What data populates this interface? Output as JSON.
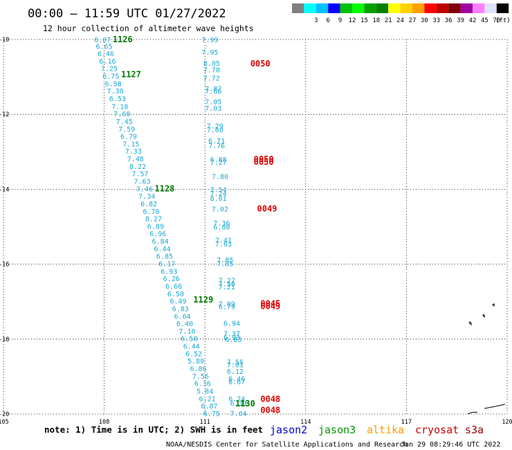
{
  "header": {
    "title": "00:00 — 11:59 UTC 01/27/2022",
    "subtitle": "12 hour collection of altimeter wave heights"
  },
  "legend": {
    "swatches": [
      {
        "color": "#808080",
        "label": ""
      },
      {
        "color": "#00ffff",
        "label": "3"
      },
      {
        "color": "#00c0ff",
        "label": "6"
      },
      {
        "color": "#0000ff",
        "label": "9"
      },
      {
        "color": "#00c000",
        "label": "12"
      },
      {
        "color": "#00ff00",
        "label": "15"
      },
      {
        "color": "#00a000",
        "label": "18"
      },
      {
        "color": "#008000",
        "label": "21"
      },
      {
        "color": "#ffff00",
        "label": "24"
      },
      {
        "color": "#ffd000",
        "label": "27"
      },
      {
        "color": "#ffa000",
        "label": "30"
      },
      {
        "color": "#ff0000",
        "label": "33"
      },
      {
        "color": "#c00000",
        "label": "36"
      },
      {
        "color": "#800000",
        "label": "39"
      },
      {
        "color": "#a000a0",
        "label": "42"
      },
      {
        "color": "#ff80ff",
        "label": "45"
      },
      {
        "color": "#e0e0ff",
        "label": "70"
      },
      {
        "color": "#000000",
        "label": ""
      }
    ],
    "unit": "(ft)"
  },
  "footer": {
    "note": "note:  1) Time is in UTC; 2) SWH is in feet",
    "satellites": [
      {
        "name": "jason2",
        "color": "#0000cc"
      },
      {
        "name": "jason3",
        "color": "#009900"
      },
      {
        "name": "altika",
        "color": "#ff9900"
      },
      {
        "name": "cryosat",
        "color": "#cc0000"
      },
      {
        "name": "s3a",
        "color": "#990000"
      }
    ],
    "credit": "NOAA/NESDIS Center for Satellite Applications and Research",
    "timestamp": "Jan 29 08:29:46 UTC 2022"
  },
  "chart_data": {
    "type": "scatter",
    "xlim": [
      105,
      120
    ],
    "ylim": [
      -20,
      -10
    ],
    "x_ticks": [
      "105",
      "108",
      "111",
      "114",
      "117",
      "120"
    ],
    "y_ticks": [
      "-10",
      "-12",
      "-14",
      "-16",
      "-18",
      "-20"
    ],
    "grid": true,
    "points": [
      {
        "x": 107.95,
        "y": -10.0,
        "v": "6.07"
      },
      {
        "x": 108.0,
        "y": -10.18,
        "v": "6.65"
      },
      {
        "x": 108.05,
        "y": -10.37,
        "v": "6.46"
      },
      {
        "x": 108.1,
        "y": -10.57,
        "v": "6.16"
      },
      {
        "x": 108.15,
        "y": -10.77,
        "v": "7.25"
      },
      {
        "x": 108.2,
        "y": -10.97,
        "v": "6.75"
      },
      {
        "x": 108.27,
        "y": -11.17,
        "v": "6.58"
      },
      {
        "x": 108.33,
        "y": -11.37,
        "v": "7.30"
      },
      {
        "x": 108.4,
        "y": -11.57,
        "v": "6.53"
      },
      {
        "x": 108.47,
        "y": -11.78,
        "v": "7.18"
      },
      {
        "x": 108.53,
        "y": -11.98,
        "v": "7.60"
      },
      {
        "x": 108.6,
        "y": -12.18,
        "v": "7.45"
      },
      {
        "x": 108.67,
        "y": -12.38,
        "v": "7.59"
      },
      {
        "x": 108.73,
        "y": -12.58,
        "v": "6.79"
      },
      {
        "x": 108.8,
        "y": -12.78,
        "v": "7.15"
      },
      {
        "x": 108.87,
        "y": -12.98,
        "v": "7.33"
      },
      {
        "x": 108.93,
        "y": -13.18,
        "v": "7.48"
      },
      {
        "x": 109.0,
        "y": -13.38,
        "v": "8.22"
      },
      {
        "x": 109.07,
        "y": -13.58,
        "v": "7.57"
      },
      {
        "x": 109.13,
        "y": -13.78,
        "v": "7.63"
      },
      {
        "x": 109.2,
        "y": -13.98,
        "v": "7.46"
      },
      {
        "x": 109.27,
        "y": -14.18,
        "v": "7.34"
      },
      {
        "x": 109.33,
        "y": -14.38,
        "v": "6.82"
      },
      {
        "x": 109.4,
        "y": -14.58,
        "v": "6.70"
      },
      {
        "x": 109.47,
        "y": -14.78,
        "v": "8.27"
      },
      {
        "x": 109.53,
        "y": -14.98,
        "v": "6.89"
      },
      {
        "x": 109.6,
        "y": -15.18,
        "v": "6.96"
      },
      {
        "x": 109.67,
        "y": -15.38,
        "v": "6.84"
      },
      {
        "x": 109.73,
        "y": -15.58,
        "v": "6.44"
      },
      {
        "x": 109.8,
        "y": -15.78,
        "v": "6.85"
      },
      {
        "x": 109.87,
        "y": -15.98,
        "v": "6.17"
      },
      {
        "x": 109.93,
        "y": -16.18,
        "v": "6.93"
      },
      {
        "x": 110.0,
        "y": -16.38,
        "v": "6.26"
      },
      {
        "x": 110.07,
        "y": -16.58,
        "v": "6.66"
      },
      {
        "x": 110.13,
        "y": -16.78,
        "v": "6.50"
      },
      {
        "x": 110.2,
        "y": -16.98,
        "v": "6.49"
      },
      {
        "x": 110.27,
        "y": -17.18,
        "v": "6.83"
      },
      {
        "x": 110.33,
        "y": -17.38,
        "v": "6.64"
      },
      {
        "x": 110.4,
        "y": -17.58,
        "v": "6.40"
      },
      {
        "x": 110.47,
        "y": -17.78,
        "v": "7.10"
      },
      {
        "x": 110.53,
        "y": -17.98,
        "v": "6.50"
      },
      {
        "x": 110.6,
        "y": -18.18,
        "v": "6.44"
      },
      {
        "x": 110.67,
        "y": -18.38,
        "v": "6.52"
      },
      {
        "x": 110.73,
        "y": -18.58,
        "v": "5.89"
      },
      {
        "x": 110.8,
        "y": -18.78,
        "v": "6.86"
      },
      {
        "x": 110.87,
        "y": -18.98,
        "v": "7.56"
      },
      {
        "x": 110.93,
        "y": -19.18,
        "v": "6.36"
      },
      {
        "x": 111.0,
        "y": -19.38,
        "v": "5.84"
      },
      {
        "x": 111.07,
        "y": -19.58,
        "v": "6.21"
      },
      {
        "x": 111.13,
        "y": -19.78,
        "v": "6.87"
      },
      {
        "x": 111.2,
        "y": -19.98,
        "v": "6.75"
      },
      {
        "x": 111.15,
        "y": -10.0,
        "v": "7.99"
      },
      {
        "x": 111.15,
        "y": -10.33,
        "v": "7.95"
      },
      {
        "x": 111.2,
        "y": -10.63,
        "v": "8.05"
      },
      {
        "x": 111.2,
        "y": -10.8,
        "v": "7.78"
      },
      {
        "x": 111.2,
        "y": -11.03,
        "v": "7.72"
      },
      {
        "x": 111.25,
        "y": -11.3,
        "v": "7.82"
      },
      {
        "x": 111.25,
        "y": -11.38,
        "v": "7.66"
      },
      {
        "x": 111.25,
        "y": -11.65,
        "v": "7.05"
      },
      {
        "x": 111.25,
        "y": -11.83,
        "v": "7.03"
      },
      {
        "x": 111.3,
        "y": -12.3,
        "v": "7.29"
      },
      {
        "x": 111.3,
        "y": -12.4,
        "v": "7.60"
      },
      {
        "x": 111.35,
        "y": -12.7,
        "v": "6.71"
      },
      {
        "x": 111.35,
        "y": -12.83,
        "v": "7.76"
      },
      {
        "x": 111.4,
        "y": -13.2,
        "v": "6.88"
      },
      {
        "x": 111.4,
        "y": -13.27,
        "v": "7.27"
      },
      {
        "x": 111.45,
        "y": -13.65,
        "v": "7.80"
      },
      {
        "x": 111.4,
        "y": -14.0,
        "v": "7.54"
      },
      {
        "x": 111.4,
        "y": -14.1,
        "v": "7.24"
      },
      {
        "x": 111.4,
        "y": -14.23,
        "v": "8.01"
      },
      {
        "x": 111.45,
        "y": -14.52,
        "v": "7.02"
      },
      {
        "x": 111.5,
        "y": -14.9,
        "v": "7.36"
      },
      {
        "x": 111.5,
        "y": -15.0,
        "v": "6.80"
      },
      {
        "x": 111.55,
        "y": -15.35,
        "v": "7.41"
      },
      {
        "x": 111.55,
        "y": -15.45,
        "v": "7.63"
      },
      {
        "x": 111.6,
        "y": -15.88,
        "v": "7.85"
      },
      {
        "x": 111.6,
        "y": -15.98,
        "v": "7.85"
      },
      {
        "x": 111.65,
        "y": -16.42,
        "v": "7.22"
      },
      {
        "x": 111.65,
        "y": -16.52,
        "v": "7.56"
      },
      {
        "x": 111.65,
        "y": -16.6,
        "v": "7.21"
      },
      {
        "x": 111.65,
        "y": -17.05,
        "v": "7.09"
      },
      {
        "x": 111.65,
        "y": -17.13,
        "v": "6.79"
      },
      {
        "x": 111.8,
        "y": -17.57,
        "v": "6.94"
      },
      {
        "x": 111.8,
        "y": -17.85,
        "v": "7.37"
      },
      {
        "x": 111.8,
        "y": -17.95,
        "v": "6.93"
      },
      {
        "x": 111.85,
        "y": -18.0,
        "v": "6.83"
      },
      {
        "x": 111.9,
        "y": -18.6,
        "v": "7.55"
      },
      {
        "x": 111.9,
        "y": -18.68,
        "v": "7.01"
      },
      {
        "x": 111.9,
        "y": -18.85,
        "v": "6.12"
      },
      {
        "x": 111.95,
        "y": -19.05,
        "v": "6.46"
      },
      {
        "x": 111.95,
        "y": -19.13,
        "v": "6.67"
      },
      {
        "x": 111.95,
        "y": -19.58,
        "v": "6.24"
      },
      {
        "x": 112.0,
        "y": -19.7,
        "v": "6.39"
      },
      {
        "x": 112.0,
        "y": -19.98,
        "v": "7.04"
      }
    ],
    "time_labels": [
      {
        "x": 108.55,
        "y": -10.0,
        "t": "1126",
        "color": "green"
      },
      {
        "x": 108.8,
        "y": -10.93,
        "t": "1127",
        "color": "green"
      },
      {
        "x": 109.8,
        "y": -13.98,
        "t": "1128",
        "color": "green"
      },
      {
        "x": 110.95,
        "y": -16.95,
        "t": "1129",
        "color": "green"
      },
      {
        "x": 112.2,
        "y": -19.72,
        "t": "1130",
        "color": "green"
      },
      {
        "x": 112.65,
        "y": -10.65,
        "t": "0050",
        "color": "red"
      },
      {
        "x": 112.75,
        "y": -13.2,
        "t": "0050",
        "color": "red"
      },
      {
        "x": 112.75,
        "y": -13.27,
        "t": "0050",
        "color": "red"
      },
      {
        "x": 112.85,
        "y": -14.52,
        "t": "0049",
        "color": "red"
      },
      {
        "x": 112.95,
        "y": -17.05,
        "t": "0045",
        "color": "red"
      },
      {
        "x": 112.95,
        "y": -17.13,
        "t": "0049",
        "color": "red"
      },
      {
        "x": 112.95,
        "y": -19.6,
        "t": "0048",
        "color": "red"
      },
      {
        "x": 112.95,
        "y": -19.9,
        "t": "0048",
        "color": "red"
      }
    ]
  }
}
